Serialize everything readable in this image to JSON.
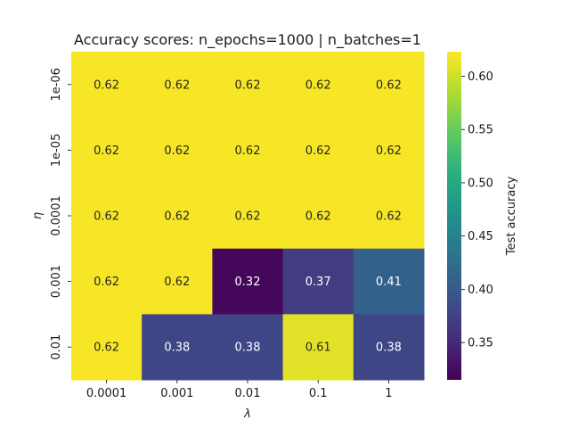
{
  "chart_data": {
    "type": "heatmap",
    "title": "Accuracy scores: n_epochs=1000 | n_batches=1",
    "xlabel": "λ",
    "ylabel": "η",
    "x_categories": [
      "0.0001",
      "0.001",
      "0.01",
      "0.1",
      "1"
    ],
    "y_categories": [
      "1e-06",
      "1e-05",
      "0.0001",
      "0.001",
      "0.01"
    ],
    "values": [
      [
        0.62,
        0.62,
        0.62,
        0.62,
        0.62
      ],
      [
        0.62,
        0.62,
        0.62,
        0.62,
        0.62
      ],
      [
        0.62,
        0.62,
        0.62,
        0.62,
        0.62
      ],
      [
        0.62,
        0.62,
        0.32,
        0.37,
        0.41
      ],
      [
        0.62,
        0.38,
        0.38,
        0.61,
        0.38
      ]
    ],
    "annotate": true,
    "colormap": "viridis",
    "colorbar": {
      "label": "Test accuracy",
      "vmin": 0.315,
      "vmax": 0.623,
      "ticks": [
        "0.35",
        "0.40",
        "0.45",
        "0.50",
        "0.55",
        "0.60"
      ]
    }
  }
}
